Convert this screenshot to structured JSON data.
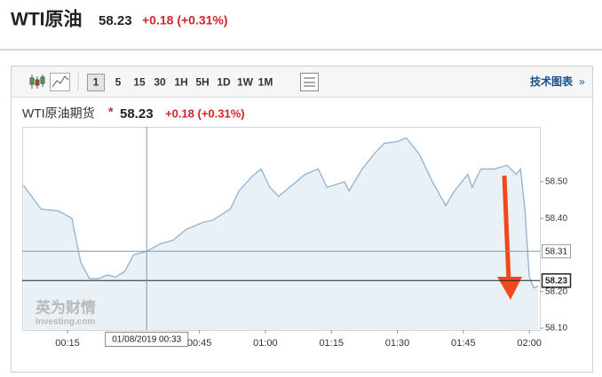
{
  "header": {
    "title": "WTI原油",
    "price": "58.23",
    "change": "+0.18 (+0.31%)"
  },
  "toolbar": {
    "intervals": [
      "1",
      "5",
      "15",
      "30",
      "1H",
      "5H",
      "1D",
      "1W",
      "1M"
    ],
    "selected_index": 0,
    "link": "技术图表"
  },
  "watermark": {
    "brand": "英为财情",
    "site": "Investing.com"
  },
  "chart_data": {
    "type": "area",
    "title": "WTI原油期货",
    "marker": "*",
    "title_price": "58.23",
    "title_change": "+0.18 (+0.31%)",
    "x": [
      5,
      9,
      13,
      16,
      18,
      20,
      22,
      24,
      26,
      28,
      30,
      33,
      36,
      39,
      42,
      46,
      48,
      52,
      54,
      57,
      59,
      61,
      63,
      67,
      69,
      72,
      74,
      78,
      79,
      82,
      85,
      87,
      90,
      92,
      95,
      98,
      101,
      103,
      106,
      107,
      109,
      112,
      115,
      117,
      118,
      119,
      120,
      121,
      122
    ],
    "values": [
      58.49,
      58.425,
      58.42,
      58.4,
      58.28,
      58.235,
      58.235,
      58.245,
      58.24,
      58.255,
      58.3,
      58.31,
      58.33,
      58.34,
      58.37,
      58.39,
      58.395,
      58.425,
      58.475,
      58.515,
      58.535,
      58.485,
      58.46,
      58.5,
      58.52,
      58.535,
      58.485,
      58.5,
      58.475,
      58.535,
      58.58,
      58.605,
      58.61,
      58.62,
      58.575,
      58.5,
      58.435,
      58.475,
      58.52,
      58.485,
      58.535,
      58.535,
      58.545,
      58.52,
      58.535,
      58.425,
      58.24,
      58.21,
      58.215
    ],
    "color": "#93b1cf",
    "fill": "#e9f0f6",
    "xlim": [
      4.7,
      122.4
    ],
    "ylim": [
      58.095,
      58.65
    ],
    "xticks": [
      {
        "value": 15,
        "label": "00:15"
      },
      {
        "value": 45,
        "label": "00:45"
      },
      {
        "value": 60,
        "label": "01:00"
      },
      {
        "value": 75,
        "label": "01:15"
      },
      {
        "value": 90,
        "label": "01:30"
      },
      {
        "value": 105,
        "label": "01:45"
      },
      {
        "value": 120,
        "label": "02:00"
      }
    ],
    "yticks": [
      {
        "value": 58.1,
        "label": "58.10"
      },
      {
        "value": 58.2,
        "label": "58.20"
      },
      {
        "value": 58.4,
        "label": "58.40"
      },
      {
        "value": 58.5,
        "label": "58.50"
      }
    ],
    "grid": false,
    "price_lines": [
      {
        "value": 58.31,
        "label": "58.31"
      },
      {
        "value": 58.23,
        "label": "58.23"
      }
    ],
    "crosshair": {
      "x": 33,
      "label": "01/08/2019 00:33"
    }
  }
}
